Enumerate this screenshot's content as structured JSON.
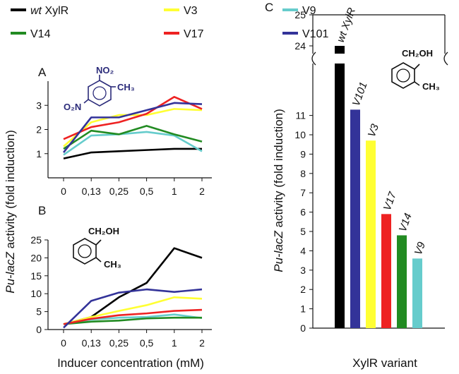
{
  "legend": {
    "items": [
      {
        "prefix": "wt",
        "label": "XylR",
        "color": "#000000"
      },
      {
        "prefix": "",
        "label": "V3",
        "color": "#ffff33"
      },
      {
        "prefix": "",
        "label": "V9",
        "color": "#66cccc"
      },
      {
        "prefix": "",
        "label": "V14",
        "color": "#228b22"
      },
      {
        "prefix": "",
        "label": "V17",
        "color": "#ee2222"
      },
      {
        "prefix": "",
        "label": "V101",
        "color": "#333399"
      }
    ]
  },
  "shared": {
    "ylabel_italic": "Pu-lacZ",
    "ylabel_rest": " activity (fold induction)",
    "xlabel_left": "Inducer concentration (mM)",
    "xlabel_right": "XylR variant"
  },
  "molecules": {
    "A": {
      "sub1": "NO₂",
      "sub2": "CH₃",
      "sub3": "O₂N"
    },
    "B": {
      "sub1": "CH₂OH",
      "sub2": "CH₃"
    },
    "C": {
      "sub1": "CH₂OH",
      "sub2": "CH₃"
    }
  },
  "chart_data": [
    {
      "panel": "A",
      "type": "line",
      "title": "A",
      "categories": [
        "0",
        "0,13",
        "0,25",
        "0,5",
        "1",
        "2"
      ],
      "ylim": [
        0,
        4
      ],
      "yticks": [
        1,
        2,
        3
      ],
      "series": [
        {
          "name": "wt XylR",
          "color": "#000000",
          "values": [
            0.8,
            1.05,
            1.1,
            1.15,
            1.2,
            1.2
          ]
        },
        {
          "name": "V3",
          "color": "#ffff33",
          "values": [
            1.3,
            2.3,
            2.6,
            2.6,
            2.85,
            2.8
          ]
        },
        {
          "name": "V9",
          "color": "#66cccc",
          "values": [
            0.95,
            1.75,
            1.8,
            1.9,
            1.75,
            1.1
          ]
        },
        {
          "name": "V14",
          "color": "#228b22",
          "values": [
            1.2,
            1.95,
            1.8,
            2.15,
            1.8,
            1.5
          ]
        },
        {
          "name": "V17",
          "color": "#ee2222",
          "values": [
            1.6,
            2.1,
            2.3,
            2.65,
            3.35,
            2.85
          ]
        },
        {
          "name": "V101",
          "color": "#333399",
          "values": [
            1.05,
            2.5,
            2.5,
            2.8,
            3.1,
            3.05
          ]
        }
      ]
    },
    {
      "panel": "B",
      "type": "line",
      "title": "B",
      "categories": [
        "0",
        "0,13",
        "0,25",
        "0,5",
        "1",
        "2"
      ],
      "ylim": [
        0,
        25
      ],
      "yticks": [
        0,
        5,
        10,
        15,
        20,
        25
      ],
      "series": [
        {
          "name": "wt XylR",
          "color": "#000000",
          "values": [
            1.5,
            3.5,
            9,
            13,
            22.7,
            20
          ]
        },
        {
          "name": "V3",
          "color": "#ffff33",
          "values": [
            1.5,
            3.5,
            5.2,
            6.8,
            9,
            8.6
          ]
        },
        {
          "name": "V9",
          "color": "#66cccc",
          "values": [
            1.5,
            2.8,
            3.3,
            3.5,
            4.2,
            3.2
          ]
        },
        {
          "name": "V14",
          "color": "#228b22",
          "values": [
            1.5,
            2.2,
            2.5,
            3.1,
            3.3,
            3.3
          ]
        },
        {
          "name": "V17",
          "color": "#ee2222",
          "values": [
            1.5,
            3,
            4,
            4.5,
            5.2,
            5.5
          ]
        },
        {
          "name": "V101",
          "color": "#333399",
          "values": [
            0.5,
            8,
            10.3,
            11.2,
            10.5,
            11.2
          ]
        }
      ]
    },
    {
      "panel": "C",
      "type": "bar",
      "title": "C",
      "categories": [
        "wt XylR",
        "V101",
        "V3",
        "V17",
        "V14",
        "V9"
      ],
      "values": [
        24,
        11.3,
        9.7,
        5.9,
        4.8,
        3.6
      ],
      "colors": [
        "#000000",
        "#333399",
        "#ffff33",
        "#ee2222",
        "#228b22",
        "#66cccc"
      ],
      "yticks_lower": [
        0,
        1,
        2,
        3,
        4,
        5,
        6,
        7,
        8,
        9,
        10,
        11
      ],
      "yticks_upper": [
        24,
        25
      ],
      "axis_break": true
    }
  ]
}
